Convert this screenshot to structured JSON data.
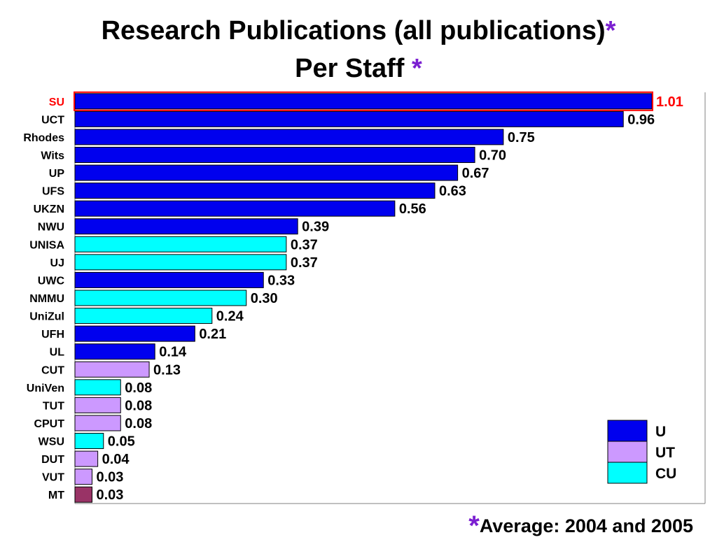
{
  "title": {
    "line1": "Research Publications (all publications)",
    "line2": "Per Staff",
    "asterisk": "*"
  },
  "footnote": {
    "asterisk": "*",
    "text": "Average: 2004 and 2005"
  },
  "colors": {
    "U": "#0000ee",
    "UT": "#cc99ff",
    "CU": "#00ffff",
    "other": "#993366",
    "highlight": "#ff0000"
  },
  "chart_data": {
    "type": "bar",
    "orientation": "horizontal",
    "categories": [
      "SU",
      "UCT",
      "Rhodes",
      "Wits",
      "UP",
      "UFS",
      "UKZN",
      "NWU",
      "UNISA",
      "UJ",
      "UWC",
      "NMMU",
      "UniZul",
      "UFH",
      "UL",
      "CUT",
      "UniVen",
      "TUT",
      "CPUT",
      "WSU",
      "DUT",
      "VUT",
      "MT"
    ],
    "values": [
      1.01,
      0.96,
      0.75,
      0.7,
      0.67,
      0.63,
      0.56,
      0.39,
      0.37,
      0.37,
      0.33,
      0.3,
      0.24,
      0.21,
      0.14,
      0.13,
      0.08,
      0.08,
      0.08,
      0.05,
      0.04,
      0.03,
      0.03
    ],
    "value_labels": [
      "1.01",
      "0.96",
      "0.75",
      "0.70",
      "0.67",
      "0.63",
      "0.56",
      "0.39",
      "0.37",
      "0.37",
      "0.33",
      "0.30",
      "0.24",
      "0.21",
      "0.14",
      "0.13",
      "0.08",
      "0.08",
      "0.08",
      "0.05",
      "0.04",
      "0.03",
      "0.03"
    ],
    "groups": [
      "U",
      "U",
      "U",
      "U",
      "U",
      "U",
      "U",
      "U",
      "CU",
      "CU",
      "U",
      "CU",
      "CU",
      "U",
      "U",
      "UT",
      "CU",
      "UT",
      "UT",
      "CU",
      "UT",
      "UT",
      "other"
    ],
    "highlighted": "SU",
    "xlim": [
      0,
      1.01
    ],
    "legend": {
      "entries": [
        "U",
        "UT",
        "CU"
      ],
      "placement": "bottom-right"
    },
    "grid": false
  }
}
